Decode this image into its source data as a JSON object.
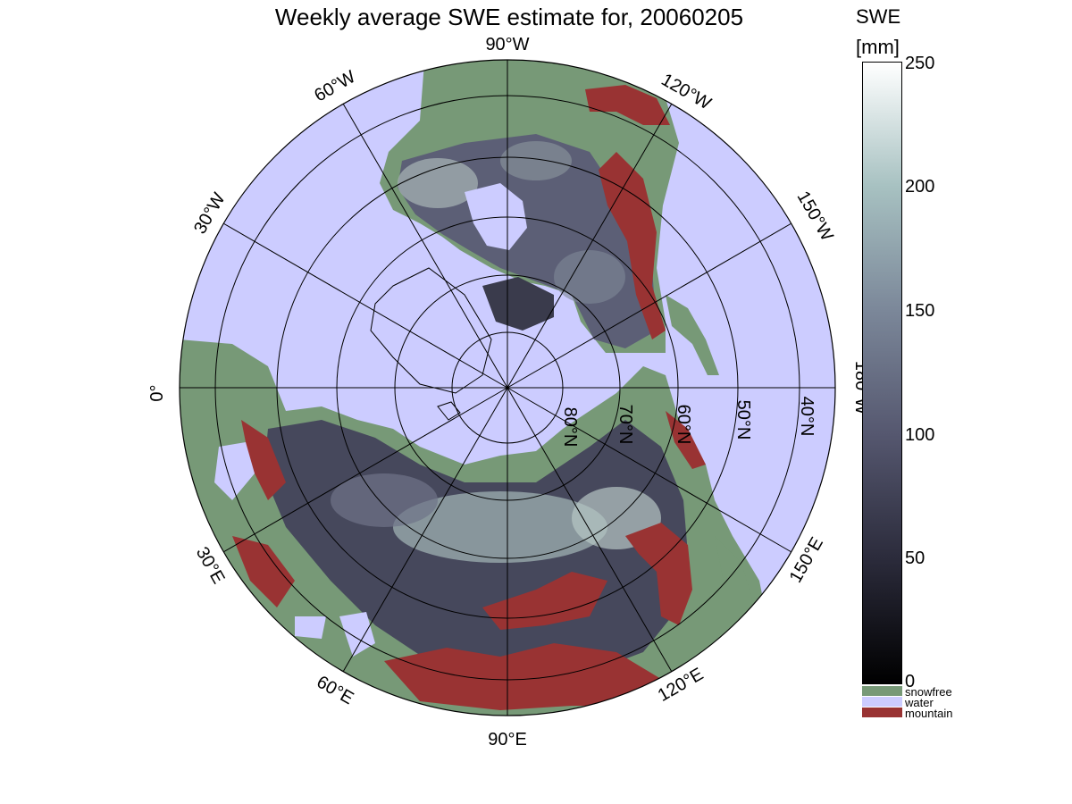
{
  "title": "Weekly average SWE estimate for, 20060205",
  "map": {
    "projection": "north polar stereographic",
    "longitude_labels": [
      "90°W",
      "120°W",
      "150°W",
      "180°W",
      "150°E",
      "120°E",
      "90°E",
      "60°E",
      "30°E",
      "0°",
      "30°W",
      "60°W"
    ],
    "latitude_labels": [
      "80°N",
      "70°N",
      "60°N",
      "50°N",
      "40°N"
    ],
    "colors": {
      "water": "#ccccff",
      "snowfree": "#779977",
      "mountain": "#993333"
    }
  },
  "colorbar": {
    "title_line1": "SWE",
    "title_line2": "[mm]",
    "ticks": [
      "250",
      "200",
      "150",
      "100",
      "50",
      "0"
    ],
    "range": [
      0,
      250
    ],
    "categories": [
      "snowfree",
      "water",
      "mountain"
    ]
  }
}
